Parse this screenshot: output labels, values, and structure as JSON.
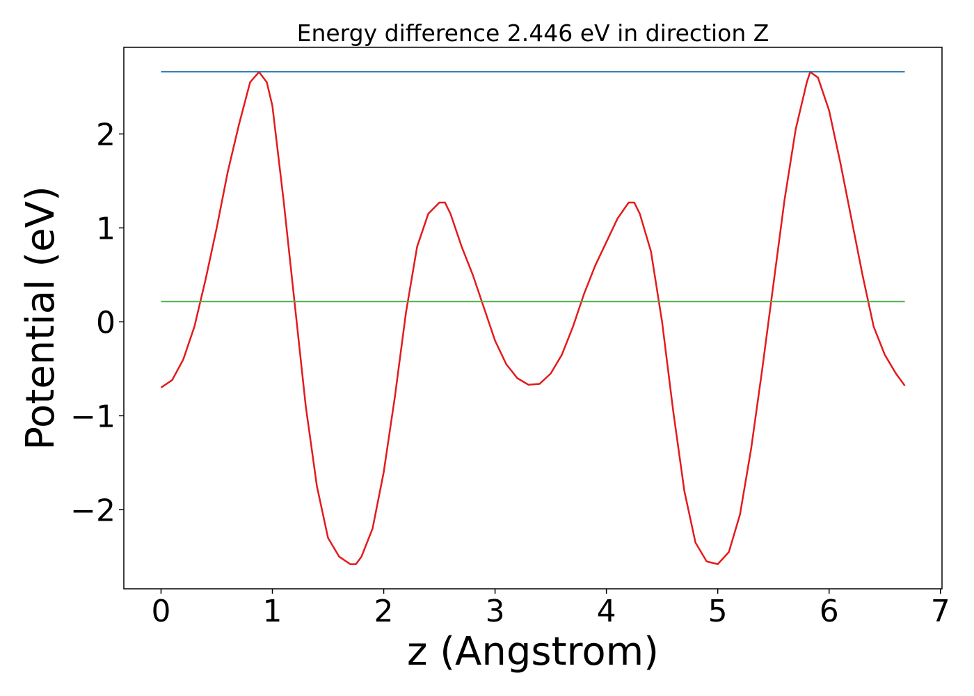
{
  "chart_data": {
    "type": "line",
    "title": "Energy difference 2.446 eV in direction Z",
    "x_label": "z (Angstrom)",
    "y_label": "Potential (eV)",
    "xlim": [
      -0.334,
      7.014
    ],
    "ylim": [
      -2.842,
      2.922
    ],
    "xticks": [
      0,
      1,
      2,
      3,
      4,
      5,
      6,
      7
    ],
    "yticks": [
      {
        "value": -2,
        "label": "−2"
      },
      {
        "value": -1,
        "label": "−1"
      },
      0,
      1,
      2
    ],
    "series": [
      {
        "color": "#e41a1c",
        "x": [
          0,
          0.1,
          0.2,
          0.3,
          0.4,
          0.5,
          0.6,
          0.7,
          0.8,
          0.88,
          0.95,
          1.0,
          1.1,
          1.2,
          1.3,
          1.4,
          1.5,
          1.6,
          1.7,
          1.75,
          1.8,
          1.9,
          2.0,
          2.1,
          2.2,
          2.3,
          2.4,
          2.5,
          2.55,
          2.6,
          2.7,
          2.8,
          2.9,
          3.0,
          3.1,
          3.2,
          3.3,
          3.4,
          3.5,
          3.6,
          3.7,
          3.8,
          3.9,
          4.0,
          4.1,
          4.2,
          4.25,
          4.3,
          4.4,
          4.5,
          4.6,
          4.7,
          4.8,
          4.9,
          5.0,
          5.1,
          5.2,
          5.3,
          5.4,
          5.5,
          5.6,
          5.7,
          5.8,
          5.83,
          5.9,
          6.0,
          6.1,
          6.2,
          6.3,
          6.4,
          6.5,
          6.6,
          6.68
        ],
        "values": [
          -0.7,
          -0.62,
          -0.4,
          -0.05,
          0.45,
          1.0,
          1.6,
          2.1,
          2.55,
          2.66,
          2.55,
          2.3,
          1.3,
          0.2,
          -0.9,
          -1.75,
          -2.3,
          -2.5,
          -2.58,
          -2.58,
          -2.5,
          -2.2,
          -1.6,
          -0.8,
          0.1,
          0.8,
          1.15,
          1.27,
          1.27,
          1.15,
          0.8,
          0.5,
          0.15,
          -0.2,
          -0.45,
          -0.6,
          -0.67,
          -0.66,
          -0.55,
          -0.35,
          -0.05,
          0.3,
          0.6,
          0.85,
          1.1,
          1.27,
          1.27,
          1.15,
          0.75,
          0.0,
          -0.95,
          -1.8,
          -2.35,
          -2.55,
          -2.58,
          -2.45,
          -2.05,
          -1.35,
          -0.5,
          0.4,
          1.3,
          2.05,
          2.55,
          2.66,
          2.6,
          2.25,
          1.7,
          1.1,
          0.5,
          -0.05,
          -0.35,
          -0.55,
          -0.68
        ]
      },
      {
        "color": "#1f77b4",
        "x": [
          0,
          6.68
        ],
        "values": [
          2.662,
          2.662
        ]
      },
      {
        "color": "#4daf4a",
        "x": [
          0,
          6.68
        ],
        "values": [
          0.216,
          0.216
        ]
      }
    ]
  }
}
